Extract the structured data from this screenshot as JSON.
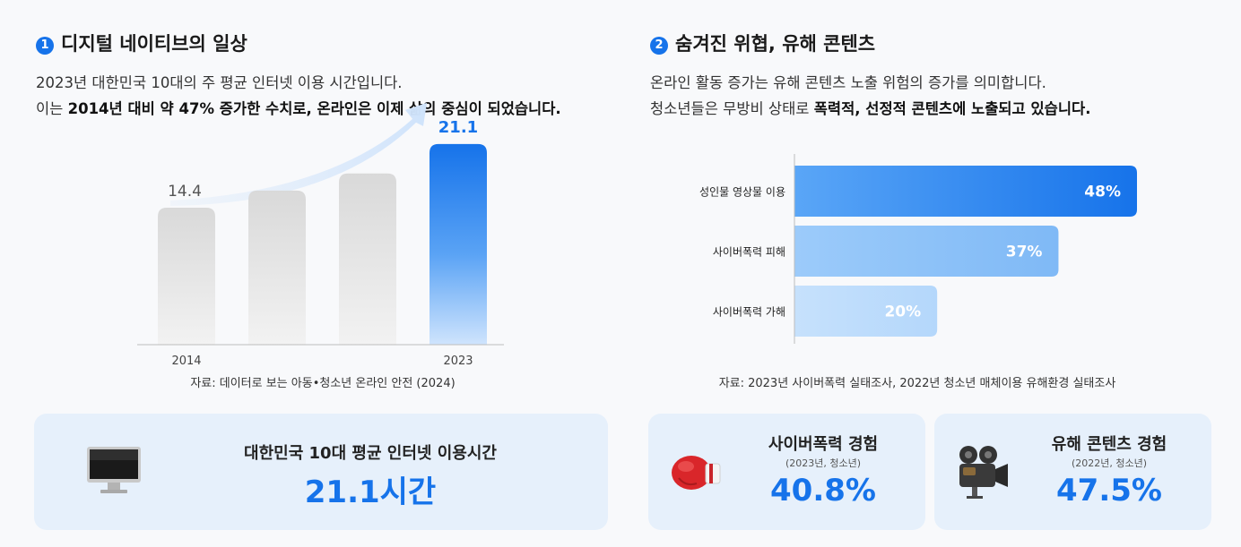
{
  "left": {
    "badge": "1",
    "title": "디지털 네이티브의 일상",
    "desc_line1": "2023년 대한민국 10대의 주 평균 인터넷 이용 시간입니다.",
    "desc_line2_pre": "이는 ",
    "desc_line2_bold1": "2014년 대비 약 47% 증가한 수치로, 온라인은 이제 삶의 중심이 되었습니다.",
    "source": "자료: 데이터로 보는 아동•청소년 온라인 안전 (2024)",
    "card": {
      "icon": "monitor-icon",
      "title": "대한민국 10대 평균 인터넷 이용시간",
      "value": "21.1시간"
    }
  },
  "right": {
    "badge": "2",
    "title": "숨겨진 위협, 유해 콘텐츠",
    "desc_line1": "온라인 활동 증가는 유해 콘텐츠 노출 위험의 증가를 의미합니다.",
    "desc_line2_pre": "청소년들은 무방비 상태로 ",
    "desc_line2_bold": "폭력적, 선정적 콘텐츠에 노출되고 있습니다.",
    "source": "자료: 2023년 사이버폭력 실태조사, 2022년 청소년 매체이용 유해환경 실태조사",
    "cards": [
      {
        "icon": "boxing-glove-icon",
        "title": "사이버폭력 경험",
        "sub": "(2023년, 청소년)",
        "value": "40.8%"
      },
      {
        "icon": "movie-camera-icon",
        "title": "유해 콘텐츠 경험",
        "sub": "(2022년, 청소년)",
        "value": "47.5%"
      }
    ]
  },
  "colors": {
    "accent": "#1673ea",
    "gray_bar": "#e2e2e2",
    "card_bg": "#e6f0fb"
  },
  "chart_data": [
    {
      "type": "bar",
      "categories": [
        "2014",
        "",
        "",
        "2023"
      ],
      "values": [
        14.4,
        16.2,
        18.0,
        21.1
      ],
      "value_labels": [
        "14.4",
        "",
        "",
        "21.1"
      ],
      "title": "",
      "xlabel": "",
      "ylabel": "",
      "ylim": [
        0,
        24
      ],
      "grid": false
    },
    {
      "type": "bar",
      "orientation": "horizontal",
      "categories": [
        "성인물 영상물 이용",
        "사이버폭력 피해",
        "사이버폭력 가해"
      ],
      "values": [
        48,
        37,
        20
      ],
      "value_labels": [
        "48%",
        "37%",
        "20%"
      ],
      "unit": "%",
      "xlim": [
        0,
        50
      ],
      "title": "",
      "xlabel": "",
      "ylabel": "",
      "grid": false
    }
  ]
}
